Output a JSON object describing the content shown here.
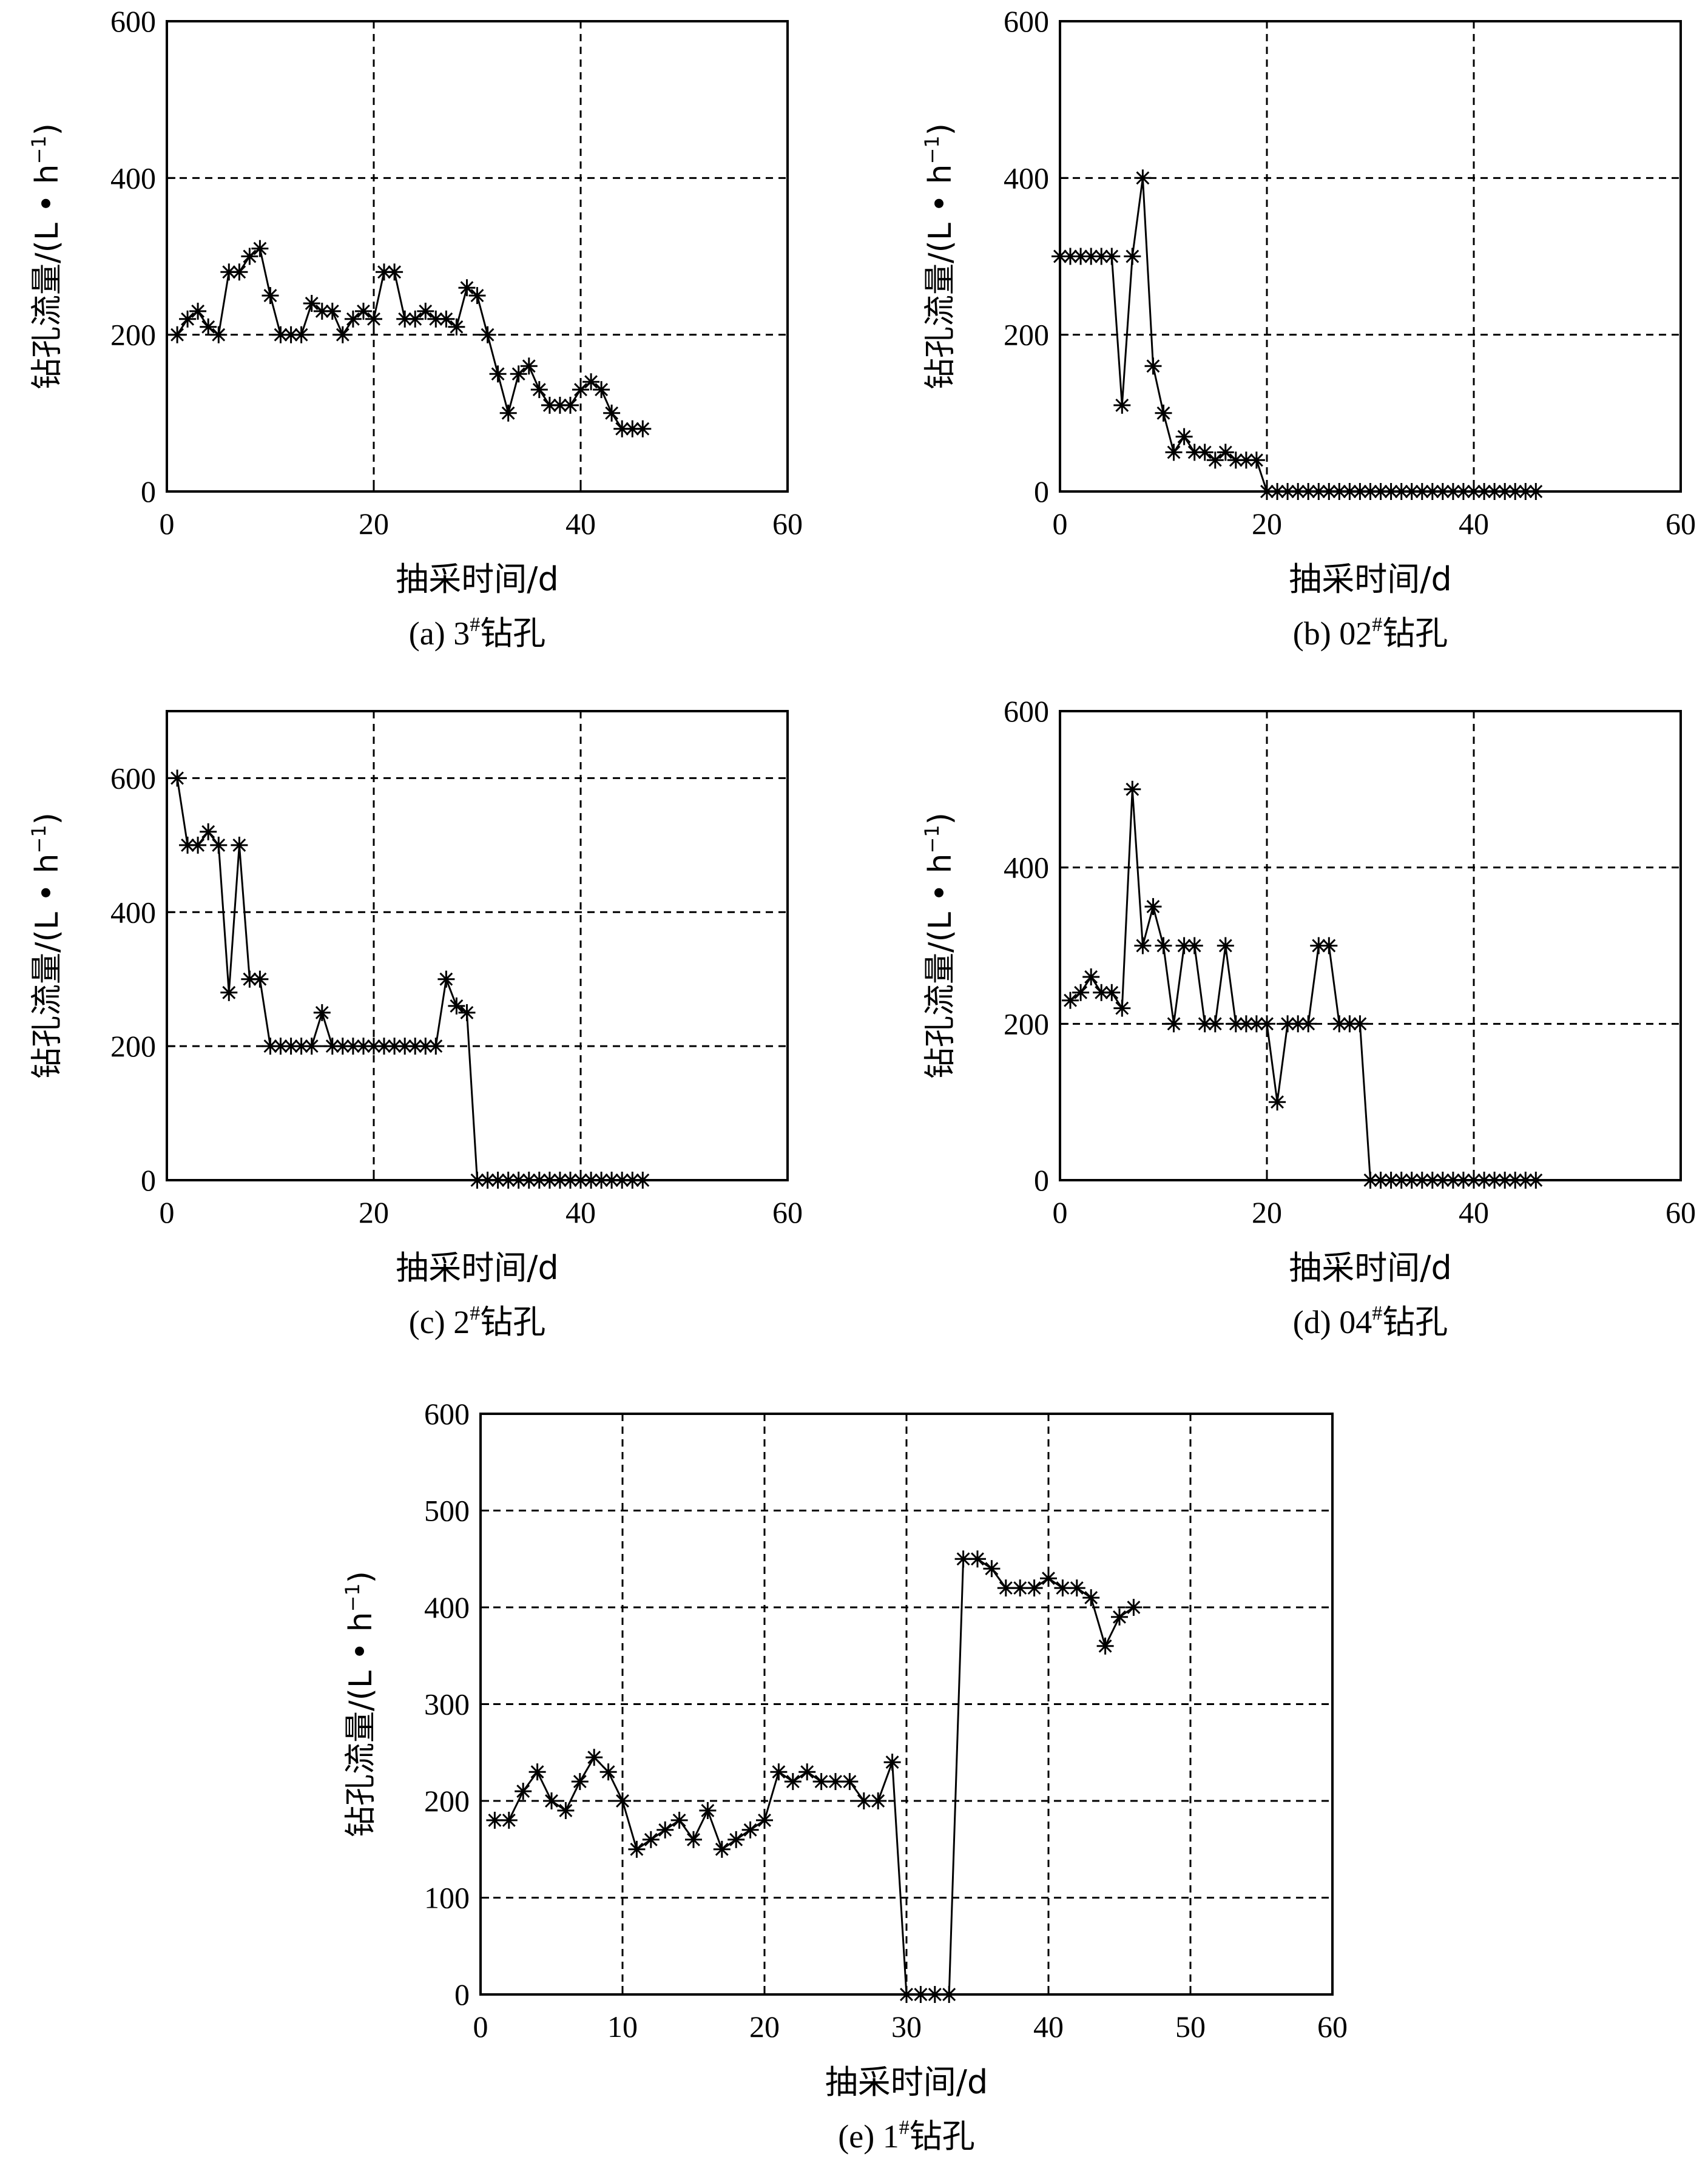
{
  "chart_data": [
    {
      "type": "line",
      "caption": "(a) 3",
      "caption_sup": "#",
      "caption_suffix": "钻孔",
      "xlabel": "抽采时间/d",
      "ylabel_main": "钻孔流量/(L • h",
      "ylabel_sup": "−1",
      "ylabel_close": ")",
      "xlim": [
        0,
        60
      ],
      "ylim": [
        0,
        600
      ],
      "xticks": [
        0,
        20,
        40,
        60
      ],
      "yticks": [
        0,
        200,
        400,
        600
      ],
      "grid": true,
      "marker": "asterisk",
      "x": [
        1,
        2,
        3,
        4,
        5,
        6,
        7,
        8,
        9,
        10,
        11,
        12,
        13,
        14,
        15,
        16,
        17,
        18,
        19,
        20,
        21,
        22,
        23,
        24,
        25,
        26,
        27,
        28,
        29,
        30,
        31,
        32,
        33,
        34,
        35,
        36,
        37,
        38,
        39,
        40,
        41,
        42,
        43,
        44,
        45,
        46
      ],
      "y": [
        200,
        220,
        230,
        210,
        200,
        280,
        280,
        300,
        310,
        250,
        200,
        200,
        200,
        240,
        230,
        230,
        200,
        220,
        230,
        220,
        280,
        280,
        220,
        220,
        230,
        220,
        220,
        210,
        260,
        250,
        200,
        150,
        100,
        150,
        160,
        130,
        110,
        110,
        110,
        130,
        140,
        130,
        100,
        80,
        80,
        80
      ]
    },
    {
      "type": "line",
      "caption": "(b) 02",
      "caption_sup": "#",
      "caption_suffix": "钻孔",
      "xlabel": "抽采时间/d",
      "ylabel_main": "钻孔流量/(L • h",
      "ylabel_sup": "−1",
      "ylabel_close": ")",
      "xlim": [
        0,
        60
      ],
      "ylim": [
        0,
        600
      ],
      "xticks": [
        0,
        20,
        40,
        60
      ],
      "yticks": [
        0,
        200,
        400,
        600
      ],
      "grid": true,
      "marker": "asterisk",
      "x": [
        0,
        1,
        2,
        3,
        4,
        5,
        6,
        7,
        8,
        9,
        10,
        11,
        12,
        13,
        14,
        15,
        16,
        17,
        18,
        19,
        20,
        21,
        22,
        23,
        24,
        25,
        26,
        27,
        28,
        29,
        30,
        31,
        32,
        33,
        34,
        35,
        36,
        37,
        38,
        39,
        40,
        41,
        42,
        43,
        44,
        45,
        46
      ],
      "y": [
        300,
        300,
        300,
        300,
        300,
        300,
        110,
        300,
        400,
        160,
        100,
        50,
        70,
        50,
        50,
        40,
        50,
        40,
        40,
        40,
        0,
        0,
        0,
        0,
        0,
        0,
        0,
        0,
        0,
        0,
        0,
        0,
        0,
        0,
        0,
        0,
        0,
        0,
        0,
        0,
        0,
        0,
        0,
        0,
        0,
        0,
        0
      ]
    },
    {
      "type": "line",
      "caption": "(c) 2",
      "caption_sup": "#",
      "caption_suffix": "钻孔",
      "xlabel": "抽采时间/d",
      "ylabel_main": "钻孔流量/(L • h",
      "ylabel_sup": "−1",
      "ylabel_close": ")",
      "xlim": [
        0,
        60
      ],
      "ylim": [
        0,
        700
      ],
      "xticks": [
        0,
        20,
        40,
        60
      ],
      "yticks": [
        0,
        200,
        400,
        600
      ],
      "grid": true,
      "marker": "asterisk",
      "x": [
        1,
        2,
        3,
        4,
        5,
        6,
        7,
        8,
        9,
        10,
        11,
        12,
        13,
        14,
        15,
        16,
        17,
        18,
        19,
        20,
        21,
        22,
        23,
        24,
        25,
        26,
        27,
        28,
        29,
        30,
        31,
        32,
        33,
        34,
        35,
        36,
        37,
        38,
        39,
        40,
        41,
        42,
        43,
        44,
        45,
        46
      ],
      "y": [
        600,
        500,
        500,
        520,
        500,
        280,
        500,
        300,
        300,
        200,
        200,
        200,
        200,
        200,
        250,
        200,
        200,
        200,
        200,
        200,
        200,
        200,
        200,
        200,
        200,
        200,
        300,
        260,
        250,
        0,
        0,
        0,
        0,
        0,
        0,
        0,
        0,
        0,
        0,
        0,
        0,
        0,
        0,
        0,
        0,
        0
      ]
    },
    {
      "type": "line",
      "caption": "(d) 04",
      "caption_sup": "#",
      "caption_suffix": "钻孔",
      "xlabel": "抽采时间/d",
      "ylabel_main": "钻孔流量/(L • h",
      "ylabel_sup": "−1",
      "ylabel_close": ")",
      "xlim": [
        0,
        60
      ],
      "ylim": [
        0,
        600
      ],
      "xticks": [
        0,
        20,
        40,
        60
      ],
      "yticks": [
        0,
        200,
        400,
        600
      ],
      "grid": true,
      "marker": "asterisk",
      "x": [
        1,
        2,
        3,
        4,
        5,
        6,
        7,
        8,
        9,
        10,
        11,
        12,
        13,
        14,
        15,
        16,
        17,
        18,
        19,
        20,
        21,
        22,
        23,
        24,
        25,
        26,
        27,
        28,
        29,
        30,
        31,
        32,
        33,
        34,
        35,
        36,
        37,
        38,
        39,
        40,
        41,
        42,
        43,
        44,
        45,
        46
      ],
      "y": [
        230,
        240,
        260,
        240,
        240,
        220,
        500,
        300,
        350,
        300,
        200,
        300,
        300,
        200,
        200,
        300,
        200,
        200,
        200,
        200,
        100,
        200,
        200,
        200,
        300,
        300,
        200,
        200,
        200,
        0,
        0,
        0,
        0,
        0,
        0,
        0,
        0,
        0,
        0,
        0,
        0,
        0,
        0,
        0,
        0,
        0
      ]
    },
    {
      "type": "line",
      "caption": "(e) 1",
      "caption_sup": "#",
      "caption_suffix": "钻孔",
      "xlabel": "抽采时间/d",
      "ylabel_main": "钻孔流量/(L • h",
      "ylabel_sup": "−1",
      "ylabel_close": ")",
      "xlim": [
        0,
        60
      ],
      "ylim": [
        0,
        600
      ],
      "xticks": [
        0,
        10,
        20,
        30,
        40,
        50,
        60
      ],
      "yticks": [
        0,
        100,
        200,
        300,
        400,
        500,
        600
      ],
      "grid": true,
      "marker": "asterisk",
      "x": [
        1,
        2,
        3,
        4,
        5,
        6,
        7,
        8,
        9,
        10,
        11,
        12,
        13,
        14,
        15,
        16,
        17,
        18,
        19,
        20,
        21,
        22,
        23,
        24,
        25,
        26,
        27,
        28,
        29,
        30,
        31,
        32,
        33,
        34,
        35,
        36,
        37,
        38,
        39,
        40,
        41,
        42,
        43,
        44,
        45,
        46
      ],
      "y": [
        180,
        180,
        210,
        230,
        200,
        190,
        220,
        245,
        230,
        200,
        150,
        160,
        170,
        180,
        160,
        190,
        150,
        160,
        170,
        180,
        230,
        220,
        230,
        220,
        220,
        220,
        200,
        200,
        240,
        0,
        0,
        0,
        0,
        450,
        450,
        440,
        420,
        420,
        420,
        430,
        420,
        420,
        410,
        360,
        390,
        400
      ]
    }
  ]
}
